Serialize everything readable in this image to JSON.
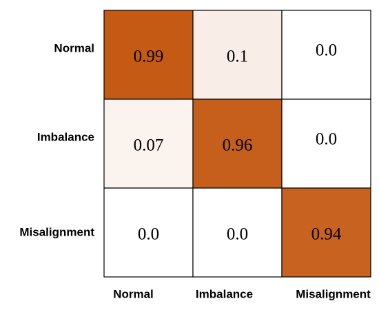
{
  "chart_data": {
    "type": "heatmap",
    "title": "",
    "xlabel": "",
    "ylabel": "",
    "row_labels": [
      "Normal",
      "Imbalance",
      "Misalignment"
    ],
    "col_labels": [
      "Normal",
      "Imbalance",
      "Misalignment"
    ],
    "values": [
      [
        "0.99",
        "0.1",
        "0.0"
      ],
      [
        "0.07",
        "0.96",
        "0.0"
      ],
      [
        "0.0",
        "0.0",
        "0.94"
      ]
    ],
    "value_range": [
      0,
      1
    ],
    "colors": {
      "low": "#ffffff",
      "high": "#c45812",
      "border": "#000000"
    }
  }
}
